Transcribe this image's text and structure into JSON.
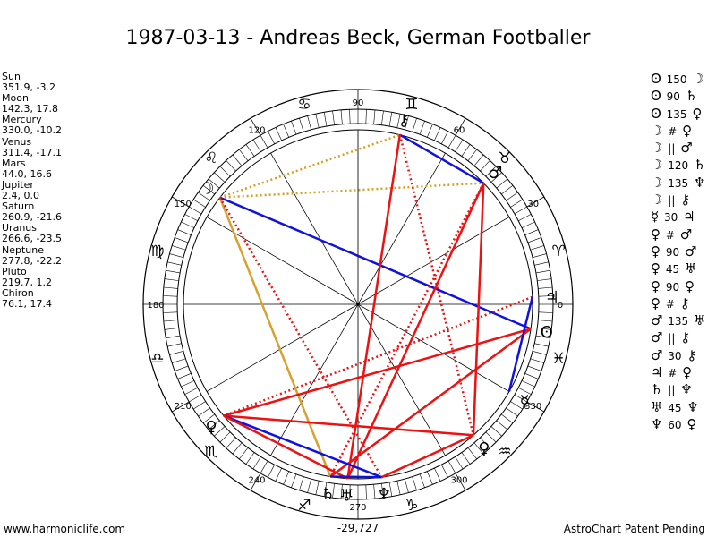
{
  "title": "1987-03-13 - Andreas Beck, German Footballer",
  "planets": [
    {
      "name": "Sun",
      "pos": "351.9, -3.2"
    },
    {
      "name": "Moon",
      "pos": "142.3, 17.8"
    },
    {
      "name": "Mercury",
      "pos": "330.0, -10.2"
    },
    {
      "name": "Venus",
      "pos": "311.4, -17.1"
    },
    {
      "name": "Mars",
      "pos": "44.0, 16.6"
    },
    {
      "name": "Jupiter",
      "pos": "2.4, 0.0"
    },
    {
      "name": "Saturn",
      "pos": "260.9, -21.6"
    },
    {
      "name": "Uranus",
      "pos": "266.6, -23.5"
    },
    {
      "name": "Neptune",
      "pos": "277.8, -22.2"
    },
    {
      "name": "Pluto",
      "pos": "219.7, 1.2"
    },
    {
      "name": "Chiron",
      "pos": "76.1, 17.4"
    }
  ],
  "aspects": [
    {
      "a": "ʘ",
      "v": "150",
      "b": "☽"
    },
    {
      "a": "ʘ",
      "v": "90",
      "b": "♄"
    },
    {
      "a": "ʘ",
      "v": "135",
      "b": "♀"
    },
    {
      "a": "☽",
      "v": "#",
      "b": "♀"
    },
    {
      "a": "☽",
      "v": "||",
      "b": "♂"
    },
    {
      "a": "☽",
      "v": "120",
      "b": "♄"
    },
    {
      "a": "☽",
      "v": "135",
      "b": "♆"
    },
    {
      "a": "☽",
      "v": "||",
      "b": "⚷"
    },
    {
      "a": "☿",
      "v": "30",
      "b": "♃"
    },
    {
      "a": "♀",
      "v": "#",
      "b": "♂"
    },
    {
      "a": "♀",
      "v": "90",
      "b": "♂"
    },
    {
      "a": "♀",
      "v": "45",
      "b": "♅"
    },
    {
      "a": "♀",
      "v": "90",
      "b": "♀"
    },
    {
      "a": "♀",
      "v": "#",
      "b": "⚷"
    },
    {
      "a": "♂",
      "v": "135",
      "b": "♅"
    },
    {
      "a": "♂",
      "v": "||",
      "b": "⚷"
    },
    {
      "a": "♂",
      "v": "30",
      "b": "⚷"
    },
    {
      "a": "♃",
      "v": "#",
      "b": "♀"
    },
    {
      "a": "♄",
      "v": "||",
      "b": "♆"
    },
    {
      "a": "♅",
      "v": "45",
      "b": "♆"
    },
    {
      "a": "♆",
      "v": "60",
      "b": "♀"
    }
  ],
  "wheel": {
    "degree_labels": [
      "0",
      "30",
      "60",
      "90",
      "120",
      "150",
      "180",
      "210",
      "240",
      "270",
      "300",
      "330"
    ],
    "sign_glyphs": [
      "♈",
      "♉",
      "♊",
      "♋",
      "♌",
      "♍",
      "♎",
      "♏",
      "♐",
      "♑",
      "♒",
      "♓"
    ],
    "planet_glyphs": {
      "sun": "ʘ",
      "moon": "☽",
      "mercury": "☿",
      "venus": "♀",
      "mars": "♂",
      "jupiter": "♃",
      "saturn": "♄",
      "uranus": "♅",
      "neptune": "♆",
      "pluto": "♀",
      "chiron": "⚷"
    },
    "bottom_annotation": "-29,727",
    "colors": {
      "red": "#ee1111",
      "blue": "#1111dd",
      "gold": "#d4a020",
      "orange": "#d9a030"
    }
  },
  "footer": {
    "left": "www.harmoniclife.com",
    "right": "AstroChart Patent Pending"
  }
}
